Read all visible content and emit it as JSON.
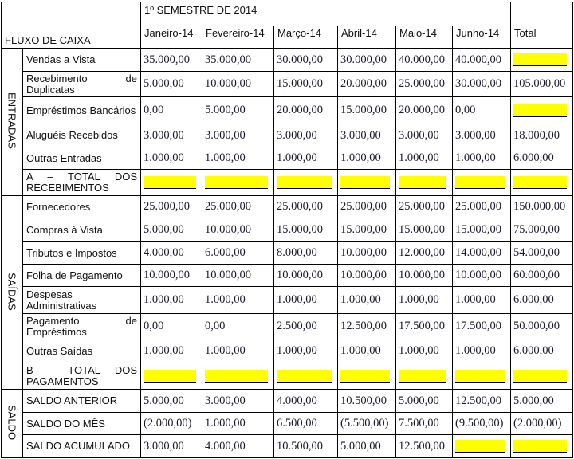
{
  "header": {
    "title": "FLUXO DE CAIXA",
    "period": "1º SEMESTRE DE 2014",
    "columns": [
      "Janeiro-14",
      "Fevereiro-14",
      "Março-14",
      "Abril-14",
      "Maio-14",
      "Junho-14",
      "Total"
    ]
  },
  "highlight_color": "#ffff00",
  "sections": [
    {
      "name": "ENTRADAS",
      "rows": [
        {
          "label": "Vendas a Vista",
          "values": [
            "35.000,00",
            "35.000,00",
            "30.000,00",
            "30.000,00",
            "40.000,00",
            "40.000,00",
            null
          ]
        },
        {
          "label": "Recebimento de Duplicatas",
          "values": [
            "5.000,00",
            "10.000,00",
            "15.000,00",
            "20.000,00",
            "25.000,00",
            "30.000,00",
            "105.000,00"
          ]
        },
        {
          "label": "Empréstimos Bancários",
          "values": [
            "0,00",
            "5.000,00",
            "20.000,00",
            "15.000,00",
            "20.000,00",
            "0,00",
            null
          ]
        },
        {
          "label": "Aluguéis Recebidos",
          "values": [
            "3.000,00",
            "3.000,00",
            "3.000,00",
            "3.000,00",
            "3.000,00",
            "3.000,00",
            "18.000,00"
          ]
        },
        {
          "label": "Outras Entradas",
          "values": [
            "1.000,00",
            "1.000,00",
            "1.000,00",
            "1.000,00",
            "1.000,00",
            "1.000,00",
            "6.000,00"
          ]
        },
        {
          "label": "A – TOTAL DOS RECEBIMENTOS",
          "values": [
            null,
            null,
            null,
            null,
            null,
            null,
            null
          ]
        }
      ]
    },
    {
      "name": "SAÍDAS",
      "rows": [
        {
          "label": "Fornecedores",
          "values": [
            "25.000,00",
            "25.000,00",
            "25.000,00",
            "25.000,00",
            "25.000,00",
            "25.000,00",
            "150.000,00"
          ]
        },
        {
          "label": "Compras à Vista",
          "values": [
            "5.000,00",
            "10.000,00",
            "15.000,00",
            "15.000,00",
            "15.000,00",
            "15.000,00",
            "75.000,00"
          ]
        },
        {
          "label": "Tributos e Impostos",
          "values": [
            "4.000,00",
            "6.000,00",
            "8.000,00",
            "10.000,00",
            "12.000,00",
            "14.000,00",
            "54.000,00"
          ]
        },
        {
          "label": "Folha de Pagamento",
          "values": [
            "10.000,00",
            "10.000,00",
            "10.000,00",
            "10.000,00",
            "10.000,00",
            "10.000,00",
            "60.000,00"
          ]
        },
        {
          "label": "Despesas Administrativas",
          "values": [
            "1.000,00",
            "1.000,00",
            "1.000,00",
            "1.000,00",
            "1.000,00",
            "1.000,00",
            "6.000,00"
          ]
        },
        {
          "label": "Pagamento de Empréstimos",
          "values": [
            "0,00",
            "0,00",
            "2.500,00",
            "12.500,00",
            "17.500,00",
            "17.500,00",
            "50.000,00"
          ]
        },
        {
          "label": "Outras Saídas",
          "values": [
            "1.000,00",
            "1.000,00",
            "1.000,00",
            "1.000,00",
            "1.000,00",
            "1.000,00",
            "6.000,00"
          ]
        },
        {
          "label": "B – TOTAL DOS PAGAMENTOS",
          "values": [
            null,
            null,
            null,
            null,
            null,
            null,
            null
          ]
        }
      ]
    },
    {
      "name": "SALDO",
      "rows": [
        {
          "label": "SALDO ANTERIOR",
          "values": [
            "5.000,00",
            "3.000,00",
            "4.000,00",
            "10.500,00",
            "5.000,00",
            "12.500,00",
            "5.000,00"
          ]
        },
        {
          "label": "SALDO DO MÊS",
          "values": [
            "(2.000,00)",
            "1.000,00",
            "6.500,00",
            "(5.500,00)",
            "7.500,00",
            "(9.500,00)",
            "(2.000,00)"
          ]
        },
        {
          "label": "SALDO ACUMULADO",
          "values": [
            "3.000,00",
            "4.000,00",
            "10.500,00",
            "5.000,00",
            "12.500,00",
            null,
            null
          ]
        }
      ]
    }
  ]
}
